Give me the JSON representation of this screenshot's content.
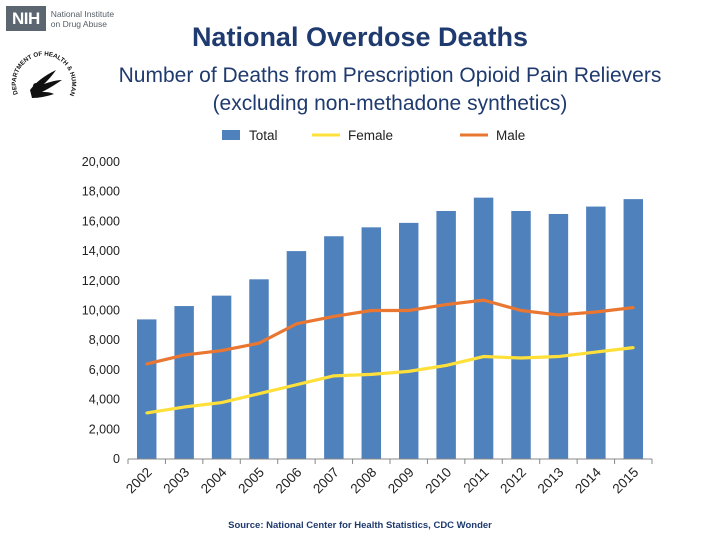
{
  "logo": {
    "badge": "NIH",
    "line1": "National Institute",
    "line2": "on Drug Abuse",
    "seal_text": "DEPARTMENT OF HEALTH & HUMAN SERVICES USA"
  },
  "chart_data": {
    "type": "bar",
    "title": "National Overdose Deaths",
    "subtitle_line1": "Number of Deaths from Prescription Opioid Pain Relievers",
    "subtitle_line2": "(excluding non-methadone synthetics)",
    "categories": [
      "2002",
      "2003",
      "2004",
      "2005",
      "2006",
      "2007",
      "2008",
      "2009",
      "2010",
      "2011",
      "2012",
      "2013",
      "2014",
      "2015"
    ],
    "series": [
      {
        "name": "Total",
        "type": "bar",
        "color": "#4f81bd",
        "values": [
          9400,
          10300,
          11000,
          12100,
          14000,
          15000,
          15600,
          15900,
          16700,
          17600,
          16700,
          16500,
          17000,
          17500
        ]
      },
      {
        "name": "Female",
        "type": "line",
        "color": "#ffe03a",
        "values": [
          3100,
          3500,
          3800,
          4400,
          5000,
          5600,
          5700,
          5900,
          6300,
          6900,
          6800,
          6900,
          7200,
          7500
        ]
      },
      {
        "name": "Male",
        "type": "line",
        "color": "#e97732",
        "values": [
          6400,
          7000,
          7300,
          7800,
          9100,
          9600,
          10000,
          10000,
          10400,
          10700,
          10000,
          9700,
          9900,
          10200
        ]
      }
    ],
    "ylim": [
      0,
      20000
    ],
    "yticks": [
      0,
      2000,
      4000,
      6000,
      8000,
      10000,
      12000,
      14000,
      16000,
      18000,
      20000
    ],
    "ytick_labels": [
      "0",
      "2,000",
      "4,000",
      "6,000",
      "8,000",
      "10,000",
      "12,000",
      "14,000",
      "16,000",
      "18,000",
      "20,000"
    ],
    "grid": false,
    "legend_position": "top",
    "source": "Source: National Center for Health Statistics, CDC Wonder"
  }
}
